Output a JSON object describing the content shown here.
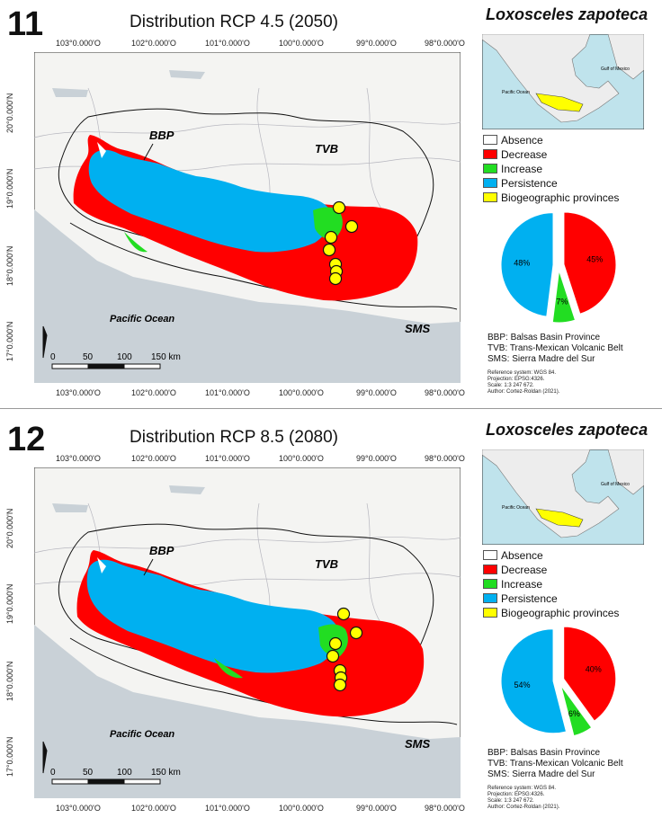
{
  "panels": [
    {
      "number": "11",
      "title": "Distribution RCP 4.5 (2050)",
      "species": "Loxosceles zapoteca",
      "pie": {
        "absence": 0,
        "decrease": 45,
        "increase": 7,
        "persistence": 48,
        "labels": [
          "45%",
          "7%",
          "48%"
        ]
      }
    },
    {
      "number": "12",
      "title": "Distribution RCP 8.5 (2080)",
      "species": "Loxosceles zapoteca",
      "pie": {
        "absence": 0,
        "decrease": 40,
        "increase": 6,
        "persistence": 54,
        "labels": [
          "40%",
          "6%",
          "54%"
        ]
      }
    }
  ],
  "map_labels": {
    "bbp": "BBP",
    "tvb": "TVB",
    "pacific": "Pacific Ocean",
    "sms": "SMS"
  },
  "inset_labels": {
    "gulf": "Gulf of Mexico",
    "pacific": "Pacific Ocean"
  },
  "longitude_ticks": [
    "103°0.000'O",
    "102°0.000'O",
    "101°0.000'O",
    "100°0.000'O",
    "99°0.000'O",
    "98°0.000'O"
  ],
  "latitude_ticks": [
    "20°0.000'N",
    "19°0.000'N",
    "18°0.000'N",
    "17°0.000'N"
  ],
  "scalebar": {
    "labels": [
      "0",
      "50",
      "100",
      "150 km"
    ]
  },
  "legend": [
    {
      "label": "Absence",
      "color": "#ffffff"
    },
    {
      "label": "Decrease",
      "color": "#ff0000"
    },
    {
      "label": "Increase",
      "color": "#22dd22"
    },
    {
      "label": "Persistence",
      "color": "#00b0f0"
    },
    {
      "label": "Biogeographic provinces",
      "color": "#ffff00"
    }
  ],
  "abbreviations": [
    "BBP: Balsas Basin Province",
    "TVB: Trans-Mexican Volcanic Belt",
    "SMS: Sierra Madre del Sur"
  ],
  "reference_lines": [
    "Reference system: WGS 84.",
    "Projection: EPSG:4326.",
    "Scale: 1:3 247 672.",
    "Author: Cortez-Roldan (2021)."
  ],
  "colors": {
    "decrease": "#ff0000",
    "increase": "#22dd22",
    "persistence": "#00b0f0",
    "province": "#ffff00",
    "land": "#f4f4f2",
    "ocean": "#c9d1d7"
  }
}
